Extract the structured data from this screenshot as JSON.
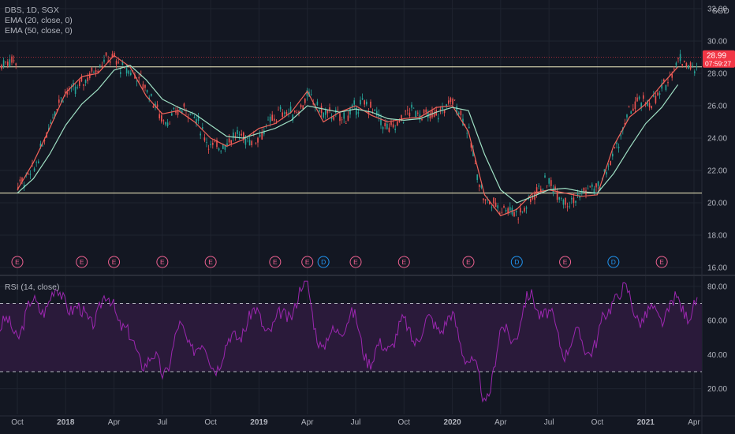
{
  "header": {
    "symbol_line": "DBS, 1D, SGX",
    "ema20_label": "EMA (20, close, 0)",
    "ema50_label": "EMA (50, close, 0)",
    "rsi_label": "RSI (14, close)",
    "currency": "SGD"
  },
  "price_tag": {
    "value": "28.99",
    "countdown": "07:59:27",
    "color": "#f23645"
  },
  "colors": {
    "background": "#131722",
    "grid": "#1f2430",
    "up_candle": "#26a69a",
    "down_candle": "#ef5350",
    "ema20": "#f0635a",
    "ema50": "#9fe0c4",
    "horizontal_line": "#f6f2c4",
    "rsi_line": "#9c27b0",
    "rsi_band": "#2a1a3a",
    "earnings_marker": "#f06292",
    "dividend_marker": "#2196f3"
  },
  "chart_data": [
    {
      "type": "line",
      "title": "DBS, 1D, SGX",
      "x_axis_labels": [
        "Oct",
        "2018",
        "Apr",
        "Jul",
        "Oct",
        "2019",
        "Apr",
        "Jul",
        "Oct",
        "2020",
        "Apr",
        "Jul",
        "Oct",
        "2021",
        "Apr"
      ],
      "y_axis_labels": [
        "16.00",
        "18.00",
        "20.00",
        "22.00",
        "24.00",
        "26.00",
        "28.00",
        "30.00",
        "32.00"
      ],
      "ylim": [
        16,
        32
      ],
      "last_price": 28.99,
      "horizontal_lines": [
        28.4,
        20.6
      ],
      "series": [
        {
          "name": "EMA (20, close, 0)",
          "x": [
            "2017-10",
            "2017-11",
            "2017-12",
            "2018-01",
            "2018-02",
            "2018-03",
            "2018-04",
            "2018-05",
            "2018-06",
            "2018-07",
            "2018-08",
            "2018-09",
            "2018-10",
            "2018-11",
            "2018-12",
            "2019-01",
            "2019-02",
            "2019-03",
            "2019-04",
            "2019-05",
            "2019-06",
            "2019-07",
            "2019-08",
            "2019-09",
            "2019-10",
            "2019-11",
            "2019-12",
            "2020-01",
            "2020-02",
            "2020-03",
            "2020-04",
            "2020-05",
            "2020-06",
            "2020-07",
            "2020-08",
            "2020-09",
            "2020-10",
            "2020-11",
            "2020-12",
            "2021-01",
            "2021-02",
            "2021-03"
          ],
          "values": [
            20.8,
            22.5,
            24.6,
            26.8,
            27.8,
            28.0,
            29.1,
            28.4,
            26.6,
            25.5,
            25.7,
            25.0,
            24.0,
            23.5,
            23.9,
            24.6,
            24.9,
            25.6,
            26.9,
            25.0,
            25.6,
            26.0,
            25.4,
            25.0,
            25.2,
            25.3,
            25.9,
            26.0,
            24.4,
            20.5,
            19.2,
            19.6,
            20.6,
            20.8,
            20.6,
            20.4,
            20.5,
            23.5,
            25.3,
            26.1,
            27.3,
            28.4
          ]
        },
        {
          "name": "EMA (50, close, 0)",
          "x": [
            "2017-10",
            "2017-11",
            "2017-12",
            "2018-01",
            "2018-02",
            "2018-03",
            "2018-04",
            "2018-05",
            "2018-06",
            "2018-07",
            "2018-08",
            "2018-09",
            "2018-10",
            "2018-11",
            "2018-12",
            "2019-01",
            "2019-02",
            "2019-03",
            "2019-04",
            "2019-05",
            "2019-06",
            "2019-07",
            "2019-08",
            "2019-09",
            "2019-10",
            "2019-11",
            "2019-12",
            "2020-01",
            "2020-02",
            "2020-03",
            "2020-04",
            "2020-05",
            "2020-06",
            "2020-07",
            "2020-08",
            "2020-09",
            "2020-10",
            "2020-11",
            "2020-12",
            "2021-01",
            "2021-02",
            "2021-03"
          ],
          "values": [
            20.6,
            21.5,
            23.0,
            24.8,
            26.1,
            27.0,
            28.2,
            28.5,
            27.6,
            26.4,
            25.9,
            25.5,
            24.8,
            24.1,
            24.0,
            24.3,
            24.6,
            25.1,
            26.0,
            25.8,
            25.6,
            25.8,
            25.6,
            25.2,
            25.1,
            25.2,
            25.6,
            25.9,
            25.7,
            23.0,
            20.8,
            20.0,
            20.4,
            20.8,
            20.9,
            20.7,
            20.6,
            21.8,
            23.4,
            24.9,
            25.9,
            27.3
          ]
        }
      ],
      "event_markers": [
        {
          "label": "E",
          "x": "2017-10"
        },
        {
          "label": "E",
          "x": "2018-02"
        },
        {
          "label": "E",
          "x": "2018-04"
        },
        {
          "label": "E",
          "x": "2018-07"
        },
        {
          "label": "E",
          "x": "2018-10"
        },
        {
          "label": "E",
          "x": "2019-02"
        },
        {
          "label": "E",
          "x": "2019-04"
        },
        {
          "label": "D",
          "x": "2019-05"
        },
        {
          "label": "E",
          "x": "2019-07"
        },
        {
          "label": "E",
          "x": "2019-10"
        },
        {
          "label": "E",
          "x": "2020-02"
        },
        {
          "label": "D",
          "x": "2020-05"
        },
        {
          "label": "E",
          "x": "2020-08"
        },
        {
          "label": "D",
          "x": "2020-11"
        },
        {
          "label": "E",
          "x": "2021-02"
        }
      ]
    },
    {
      "type": "line",
      "title": "RSI (14, close)",
      "y_axis_labels": [
        "20.00",
        "40.00",
        "60.00",
        "80.00"
      ],
      "ylim": [
        5,
        85
      ],
      "bands": [
        30,
        70
      ],
      "series": [
        {
          "name": "RSI (14, close)",
          "x": [
            "2017-10",
            "2017-11",
            "2017-12",
            "2018-01",
            "2018-02",
            "2018-03",
            "2018-04",
            "2018-05",
            "2018-06",
            "2018-07",
            "2018-08",
            "2018-09",
            "2018-10",
            "2018-11",
            "2018-12",
            "2019-01",
            "2019-02",
            "2019-03",
            "2019-04",
            "2019-05",
            "2019-06",
            "2019-07",
            "2019-08",
            "2019-09",
            "2019-10",
            "2019-11",
            "2019-12",
            "2020-01",
            "2020-02",
            "2020-03",
            "2020-04",
            "2020-05",
            "2020-06",
            "2020-07",
            "2020-08",
            "2020-09",
            "2020-10",
            "2020-11",
            "2020-12",
            "2021-01",
            "2021-02",
            "2021-03"
          ],
          "values": [
            55,
            68,
            72,
            75,
            60,
            66,
            72,
            45,
            38,
            30,
            52,
            48,
            35,
            42,
            58,
            62,
            55,
            68,
            80,
            40,
            60,
            58,
            35,
            48,
            55,
            52,
            60,
            58,
            40,
            12,
            50,
            55,
            75,
            60,
            45,
            48,
            45,
            78,
            72,
            60,
            65,
            68
          ]
        }
      ]
    }
  ]
}
